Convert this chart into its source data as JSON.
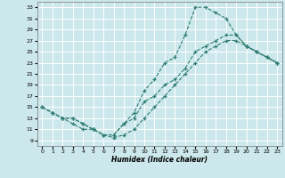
{
  "xlabel": "Humidex (Indice chaleur)",
  "bg_color": "#cce8ec",
  "grid_color": "#ffffff",
  "line_color": "#2e7d6e",
  "xlim": [
    -0.5,
    23.5
  ],
  "ylim": [
    8,
    34
  ],
  "xticks": [
    0,
    1,
    2,
    3,
    4,
    5,
    6,
    7,
    8,
    9,
    10,
    11,
    12,
    13,
    14,
    15,
    16,
    17,
    18,
    19,
    20,
    21,
    22,
    23
  ],
  "yticks": [
    9,
    11,
    13,
    15,
    17,
    19,
    21,
    23,
    25,
    27,
    29,
    31,
    33
  ],
  "line1_x": [
    0,
    1,
    2,
    3,
    4,
    5,
    6,
    7,
    8,
    9,
    10,
    11,
    12,
    13,
    14,
    15,
    16,
    17,
    18,
    19,
    20,
    21,
    22,
    23
  ],
  "line1_y": [
    15,
    14,
    13,
    13,
    12,
    11,
    10,
    10,
    12,
    14,
    18,
    20,
    23,
    24,
    28,
    33,
    33,
    32,
    31,
    28,
    26,
    25,
    24,
    23
  ],
  "line2_x": [
    0,
    1,
    2,
    3,
    4,
    5,
    6,
    7,
    8,
    9,
    10,
    11,
    12,
    13,
    14,
    15,
    16,
    17,
    18,
    19,
    20,
    21,
    22,
    23
  ],
  "line2_y": [
    15,
    14,
    13,
    13,
    12,
    11,
    10,
    10,
    12,
    13,
    16,
    17,
    19,
    20,
    22,
    25,
    26,
    27,
    28,
    28,
    26,
    25,
    24,
    23
  ],
  "line3_x": [
    0,
    1,
    2,
    3,
    4,
    5,
    6,
    7,
    8,
    9,
    10,
    11,
    12,
    13,
    14,
    15,
    16,
    17,
    18,
    19,
    20,
    21,
    22,
    23
  ],
  "line3_y": [
    15,
    14,
    13,
    12,
    11,
    11,
    10,
    9.5,
    10,
    11,
    13,
    15,
    17,
    19,
    21,
    23,
    25,
    26,
    27,
    27,
    26,
    25,
    24,
    23
  ]
}
